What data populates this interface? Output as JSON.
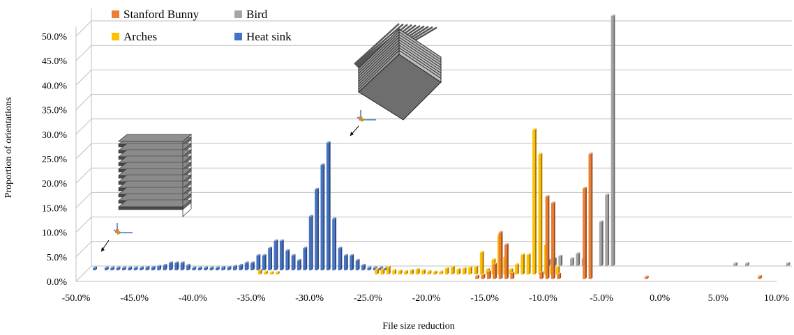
{
  "chart_data": {
    "type": "bar",
    "title": "",
    "xlabel": "File size reduction",
    "ylabel": "Proportion of orientations",
    "xlim": [
      -50,
      10
    ],
    "ylim": [
      0,
      50
    ],
    "x_ticks": [
      "-50.0%",
      "-45.0%",
      "-40.0%",
      "-35.0%",
      "-30.0%",
      "-25.0%",
      "-20.0%",
      "-15.0%",
      "-10.0%",
      "-5.0%",
      "0.0%",
      "5.0%",
      "10.0%"
    ],
    "y_ticks": [
      "0.0%",
      "5.0%",
      "10.0%",
      "15.0%",
      "20.0%",
      "25.0%",
      "30.0%",
      "35.0%",
      "40.0%",
      "45.0%",
      "50.0%"
    ],
    "grid": true,
    "legend_position": "top-left",
    "series": [
      {
        "name": "Stanford Bunny",
        "color": "#ED7D31",
        "x": [
          -16.0,
          -15.5,
          -15.0,
          -14.5,
          -14.0,
          -13.5,
          -13.0,
          -10.5,
          -10.0,
          -9.5,
          -9.0,
          -6.8,
          -6.3,
          -1.5,
          8.2
        ],
        "y": [
          0.6,
          0.8,
          1.5,
          3.0,
          9.5,
          7.0,
          1.2,
          1.3,
          16.8,
          15.5,
          1.0,
          18.5,
          25.5,
          0.4,
          0.5
        ]
      },
      {
        "name": "Bird",
        "color": "#A5A5A5",
        "x": [
          -11.0,
          -10.5,
          -10.0,
          -9.0,
          -8.5,
          -8.0,
          -6.5,
          -6.0,
          -5.5,
          5.0,
          6.0,
          9.5
        ],
        "y": [
          1.2,
          1.5,
          2.0,
          1.5,
          2.5,
          1.5,
          9.0,
          14.5,
          51.0,
          0.5,
          0.5,
          0.5
        ]
      },
      {
        "name": "Arches",
        "color": "#FFC000",
        "x": [
          -35.0,
          -34.5,
          -34.0,
          -33.5,
          -25.0,
          -24.5,
          -24.0,
          -23.5,
          -23.0,
          -22.5,
          -22.0,
          -21.5,
          -21.0,
          -20.5,
          -20.0,
          -19.5,
          -19.0,
          -18.5,
          -18.0,
          -17.5,
          -17.0,
          -16.5,
          -16.0,
          -15.5,
          -15.0,
          -14.5,
          -14.0,
          -13.5,
          -13.0,
          -12.5,
          -12.0,
          -11.5,
          -11.0,
          -10.5,
          -10.0,
          -9.5
        ],
        "y": [
          0.8,
          0.5,
          0.4,
          0.4,
          1.0,
          1.0,
          1.5,
          0.8,
          0.7,
          0.6,
          0.8,
          1.0,
          0.8,
          0.6,
          0.5,
          0.5,
          1.2,
          1.5,
          1.0,
          1.2,
          1.4,
          1.5,
          4.5,
          1.0,
          3.0,
          8.0,
          3.5,
          1.0,
          2.0,
          4.0,
          4.0,
          29.5,
          24.5,
          6.0,
          2.0,
          1.5
        ]
      },
      {
        "name": "Heat sink",
        "color": "#4472C4",
        "x": [
          -49.5,
          -48.5,
          -48.0,
          -47.5,
          -47.0,
          -46.5,
          -46.0,
          -45.5,
          -45.0,
          -44.5,
          -44.0,
          -43.5,
          -43.0,
          -42.5,
          -42.0,
          -41.5,
          -41.0,
          -40.5,
          -40.0,
          -39.5,
          -39.0,
          -38.5,
          -38.0,
          -37.5,
          -37.0,
          -36.5,
          -36.0,
          -35.5,
          -35.0,
          -34.5,
          -34.0,
          -33.5,
          -33.0,
          -32.5,
          -32.0,
          -31.5,
          -31.0,
          -30.5,
          -30.0,
          -29.5,
          -29.0,
          -28.5,
          -28.0,
          -27.5,
          -27.0,
          -26.5,
          -26.0,
          -25.5,
          -25.0,
          -24.5
        ],
        "y": [
          0.5,
          0.5,
          0.5,
          0.5,
          0.5,
          0.5,
          0.5,
          0.5,
          0.6,
          0.6,
          0.8,
          1.0,
          1.5,
          1.5,
          1.5,
          1.0,
          0.5,
          0.5,
          0.5,
          0.5,
          0.5,
          0.6,
          0.6,
          0.8,
          1.0,
          1.5,
          1.5,
          3.0,
          3.0,
          4.5,
          6.0,
          6.0,
          4.0,
          3.0,
          2.0,
          4.5,
          11.0,
          16.5,
          21.5,
          26.0,
          10.5,
          4.5,
          3.0,
          3.0,
          2.0,
          1.0,
          0.5,
          0.5,
          0.5,
          0.5
        ]
      }
    ],
    "legend": {
      "items": [
        "Stanford Bunny",
        "Bird",
        "Arches",
        "Heat sink"
      ]
    },
    "insets": [
      {
        "name": "heat-sink-flat-render"
      },
      {
        "name": "heat-sink-rotated-render"
      }
    ]
  }
}
